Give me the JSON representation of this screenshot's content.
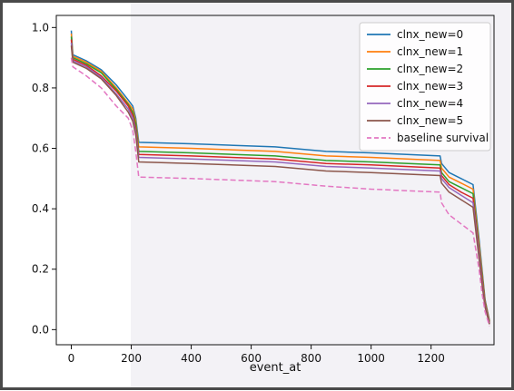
{
  "chart_data": {
    "type": "line",
    "title": "",
    "xlabel": "event_at",
    "ylabel": "",
    "xlim": [
      -50,
      1410
    ],
    "ylim": [
      -0.05,
      1.04
    ],
    "xticks": [
      0,
      200,
      400,
      600,
      800,
      1000,
      1200
    ],
    "yticks": [
      0.0,
      0.2,
      0.4,
      0.6,
      0.8,
      1.0
    ],
    "xtick_labels": [
      "0",
      "200",
      "400",
      "600",
      "800",
      "1000",
      "1200"
    ],
    "ytick_labels": [
      "0.0",
      "0.2",
      "0.4",
      "0.6",
      "0.8",
      "1.0"
    ],
    "legend_position": "upper-right",
    "grid": false,
    "series": [
      {
        "name": "clnx_new=0",
        "color": "#1f77b4",
        "style": "solid",
        "x": [
          0,
          5,
          50,
          100,
          150,
          190,
          205,
          215,
          225,
          400,
          680,
          850,
          1000,
          1230,
          1235,
          1260,
          1300,
          1340,
          1360,
          1370,
          1380,
          1395
        ],
        "y": [
          0.99,
          0.91,
          0.89,
          0.86,
          0.81,
          0.76,
          0.74,
          0.7,
          0.62,
          0.615,
          0.605,
          0.59,
          0.585,
          0.575,
          0.55,
          0.52,
          0.5,
          0.48,
          0.3,
          0.2,
          0.1,
          0.03
        ]
      },
      {
        "name": "clnx_new=1",
        "color": "#ff7f0e",
        "style": "solid",
        "x": [
          0,
          5,
          50,
          100,
          150,
          190,
          205,
          215,
          225,
          400,
          680,
          850,
          1000,
          1230,
          1235,
          1260,
          1300,
          1340,
          1360,
          1370,
          1380,
          1395
        ],
        "y": [
          0.98,
          0.905,
          0.885,
          0.855,
          0.8,
          0.75,
          0.73,
          0.69,
          0.605,
          0.6,
          0.59,
          0.575,
          0.57,
          0.56,
          0.535,
          0.505,
          0.485,
          0.465,
          0.285,
          0.19,
          0.095,
          0.028
        ]
      },
      {
        "name": "clnx_new=2",
        "color": "#2ca02c",
        "style": "solid",
        "x": [
          0,
          5,
          50,
          100,
          150,
          190,
          205,
          215,
          225,
          400,
          680,
          850,
          1000,
          1230,
          1235,
          1260,
          1300,
          1340,
          1360,
          1370,
          1380,
          1395
        ],
        "y": [
          0.97,
          0.9,
          0.88,
          0.85,
          0.795,
          0.745,
          0.72,
          0.68,
          0.59,
          0.585,
          0.575,
          0.56,
          0.555,
          0.545,
          0.52,
          0.49,
          0.47,
          0.45,
          0.27,
          0.18,
          0.09,
          0.025
        ]
      },
      {
        "name": "clnx_new=3",
        "color": "#d62728",
        "style": "solid",
        "x": [
          0,
          5,
          50,
          100,
          150,
          190,
          205,
          215,
          225,
          400,
          680,
          850,
          1000,
          1230,
          1235,
          1260,
          1300,
          1340,
          1360,
          1370,
          1380,
          1395
        ],
        "y": [
          0.96,
          0.895,
          0.875,
          0.84,
          0.79,
          0.74,
          0.71,
          0.665,
          0.58,
          0.575,
          0.565,
          0.55,
          0.545,
          0.535,
          0.51,
          0.48,
          0.455,
          0.435,
          0.26,
          0.17,
          0.085,
          0.022
        ]
      },
      {
        "name": "clnx_new=4",
        "color": "#9467bd",
        "style": "solid",
        "x": [
          0,
          5,
          50,
          100,
          150,
          190,
          205,
          215,
          225,
          400,
          680,
          850,
          1000,
          1230,
          1235,
          1260,
          1300,
          1340,
          1360,
          1370,
          1380,
          1395
        ],
        "y": [
          0.95,
          0.89,
          0.87,
          0.835,
          0.78,
          0.73,
          0.7,
          0.655,
          0.57,
          0.565,
          0.555,
          0.54,
          0.535,
          0.525,
          0.5,
          0.47,
          0.445,
          0.42,
          0.25,
          0.16,
          0.08,
          0.02
        ]
      },
      {
        "name": "clnx_new=5",
        "color": "#8c564b",
        "style": "solid",
        "x": [
          0,
          5,
          50,
          100,
          150,
          190,
          205,
          215,
          225,
          400,
          680,
          850,
          1000,
          1230,
          1235,
          1260,
          1300,
          1340,
          1360,
          1370,
          1380,
          1395
        ],
        "y": [
          0.94,
          0.885,
          0.865,
          0.83,
          0.775,
          0.72,
          0.69,
          0.645,
          0.555,
          0.55,
          0.54,
          0.525,
          0.52,
          0.51,
          0.485,
          0.455,
          0.43,
          0.405,
          0.235,
          0.15,
          0.075,
          0.018
        ]
      },
      {
        "name": "baseline survival",
        "color": "#e377c2",
        "style": "dashed",
        "x": [
          0,
          5,
          50,
          100,
          150,
          190,
          205,
          215,
          225,
          400,
          680,
          850,
          1000,
          1230,
          1235,
          1260,
          1300,
          1340,
          1360,
          1370,
          1380,
          1395
        ],
        "y": [
          0.9,
          0.87,
          0.84,
          0.8,
          0.74,
          0.7,
          0.66,
          0.59,
          0.505,
          0.5,
          0.49,
          0.475,
          0.465,
          0.455,
          0.42,
          0.38,
          0.35,
          0.32,
          0.2,
          0.12,
          0.06,
          0.012
        ]
      }
    ]
  }
}
